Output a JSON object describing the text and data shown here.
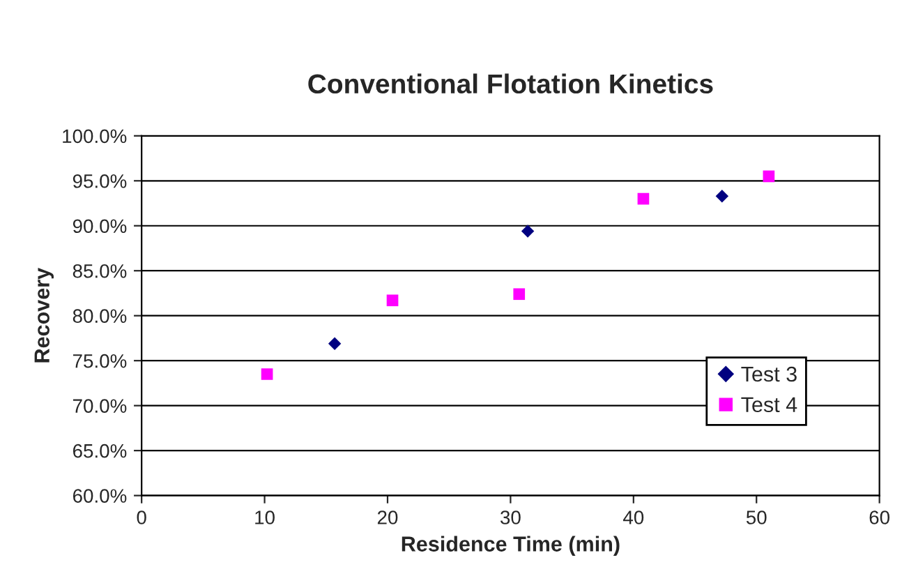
{
  "chart_data": {
    "type": "scatter",
    "title": "Conventional Flotation Kinetics",
    "xlabel": "Residence Time (min)",
    "ylabel": "Recovery",
    "series": [
      {
        "name": "Test 3",
        "color": "#000080",
        "marker": "diamond",
        "x": [
          15.7,
          31.4,
          47.2
        ],
        "values": [
          76.9,
          89.4,
          93.3
        ]
      },
      {
        "name": "Test 4",
        "color": "#ff00ff",
        "marker": "square",
        "x": [
          10.2,
          20.4,
          30.7,
          40.8,
          51.0
        ],
        "values": [
          73.5,
          81.7,
          82.4,
          93.0,
          95.5
        ]
      }
    ],
    "xlim": [
      0,
      60
    ],
    "xticks": [
      0,
      10,
      20,
      30,
      40,
      50,
      60
    ],
    "ylim": [
      60,
      100
    ],
    "yticks": [
      {
        "value": 60,
        "label": "60.0%"
      },
      {
        "value": 65,
        "label": "65.0%"
      },
      {
        "value": 70,
        "label": "70.0%"
      },
      {
        "value": 75,
        "label": "75.0%"
      },
      {
        "value": 80,
        "label": "80.0%"
      },
      {
        "value": 85,
        "label": "85.0%"
      },
      {
        "value": 90,
        "label": "90.0%"
      },
      {
        "value": 95,
        "label": "95.0%"
      },
      {
        "value": 100,
        "label": "100.0%"
      }
    ],
    "grid": "y",
    "legend": "right"
  }
}
